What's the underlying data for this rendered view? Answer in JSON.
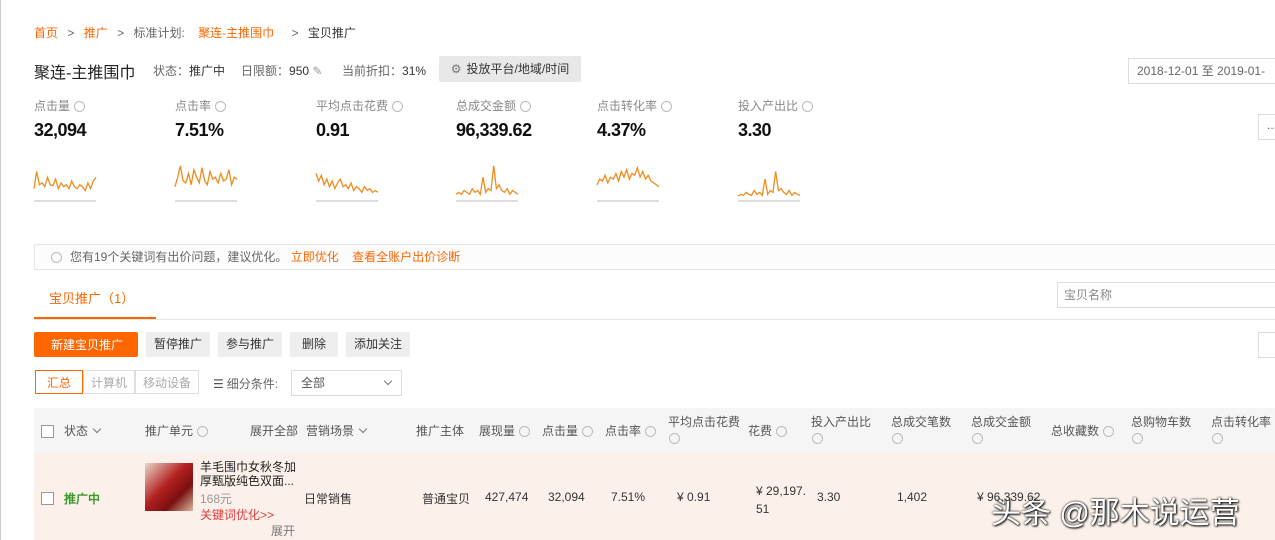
{
  "breadcrumb": {
    "items": [
      "首页",
      "推广",
      "标准计划:",
      "聚连-主推围巾",
      "宝贝推广"
    ],
    "separator": ">"
  },
  "header": {
    "title": "聚连-主推围巾",
    "status_label": "状态：",
    "status": "推广中",
    "budget_label": "日限额：",
    "budget": "950",
    "discount_label": "当前折扣：",
    "discount": "31%",
    "settings_button": "投放平台/地域/时间",
    "date_range": "2018-12-01 至 2019-01-",
    "more_button": "..."
  },
  "metrics": [
    {
      "label": "点击量",
      "value": "32,094",
      "trend": [
        30,
        75,
        40,
        45,
        35,
        60,
        40,
        38,
        55,
        30,
        45,
        35,
        40,
        30,
        50,
        35,
        30,
        40,
        35,
        25,
        45,
        30,
        50,
        60
      ]
    },
    {
      "label": "点击率",
      "value": "7.51%",
      "trend": [
        35,
        60,
        90,
        50,
        45,
        70,
        40,
        80,
        60,
        45,
        85,
        50,
        40,
        75,
        55,
        60,
        45,
        70,
        50,
        55,
        80,
        40,
        60,
        55
      ]
    },
    {
      "label": "平均点击花费",
      "value": "0.91",
      "trend": [
        70,
        50,
        65,
        40,
        55,
        35,
        50,
        30,
        45,
        55,
        35,
        40,
        30,
        45,
        25,
        35,
        30,
        20,
        35,
        25,
        30,
        20,
        25,
        20
      ]
    },
    {
      "label": "总成交金额",
      "value": "96,339.62",
      "trend": [
        15,
        20,
        15,
        25,
        20,
        15,
        30,
        20,
        25,
        15,
        60,
        20,
        30,
        25,
        90,
        30,
        40,
        25,
        20,
        30,
        15,
        25,
        20,
        15
      ]
    },
    {
      "label": "点击转化率",
      "value": "4.37%",
      "trend": [
        40,
        55,
        50,
        65,
        45,
        60,
        55,
        70,
        50,
        75,
        60,
        80,
        55,
        70,
        65,
        85,
        60,
        75,
        55,
        65,
        50,
        45,
        40,
        35
      ]
    },
    {
      "label": "投入产出比",
      "value": "3.30",
      "trend": [
        10,
        15,
        12,
        20,
        15,
        12,
        25,
        15,
        20,
        12,
        55,
        15,
        25,
        20,
        75,
        25,
        30,
        20,
        15,
        25,
        12,
        20,
        15,
        12
      ]
    }
  ],
  "notice": {
    "text": "您有19个关键词有出价问题，建议优化。",
    "link_optimize": "立即优化",
    "link_diagnose": "查看全账户出价诊断"
  },
  "tab": {
    "label": "宝贝推广",
    "count": "（1）"
  },
  "search_placeholder": "宝贝名称",
  "toolbar": {
    "buttons": [
      "新建宝贝推广",
      "暂停推广",
      "参与推广",
      "删除",
      "添加关注"
    ],
    "views": [
      "汇总",
      "计算机",
      "移动设备"
    ],
    "filter_label": "细分条件:",
    "filter_value": "全部"
  },
  "table": {
    "columns": [
      "状态",
      "推广单元",
      "展开全部",
      "营销场景",
      "推广主体",
      "展现量",
      "点击量",
      "点击率",
      "平均点击花费",
      "花费",
      "投入产出比",
      "总成交笔数",
      "总成交金额",
      "总收藏数",
      "总购物车数",
      "点击转化率"
    ],
    "rows": [
      {
        "status": "推广中",
        "title": "羊毛围巾女秋冬加厚甄版纯色双面...",
        "price": "168元",
        "optimize_link": "关键词优化>>",
        "expand": "展开",
        "scene": "日常销售",
        "subject": "普通宝贝",
        "cells": [
          "427,474",
          "32,094",
          "7.51%",
          "¥ 0.91",
          "¥ 29,197.51",
          "3.30",
          "1,402",
          "¥ 96,339.62"
        ]
      }
    ]
  },
  "watermark": "头条 @那木说运营"
}
